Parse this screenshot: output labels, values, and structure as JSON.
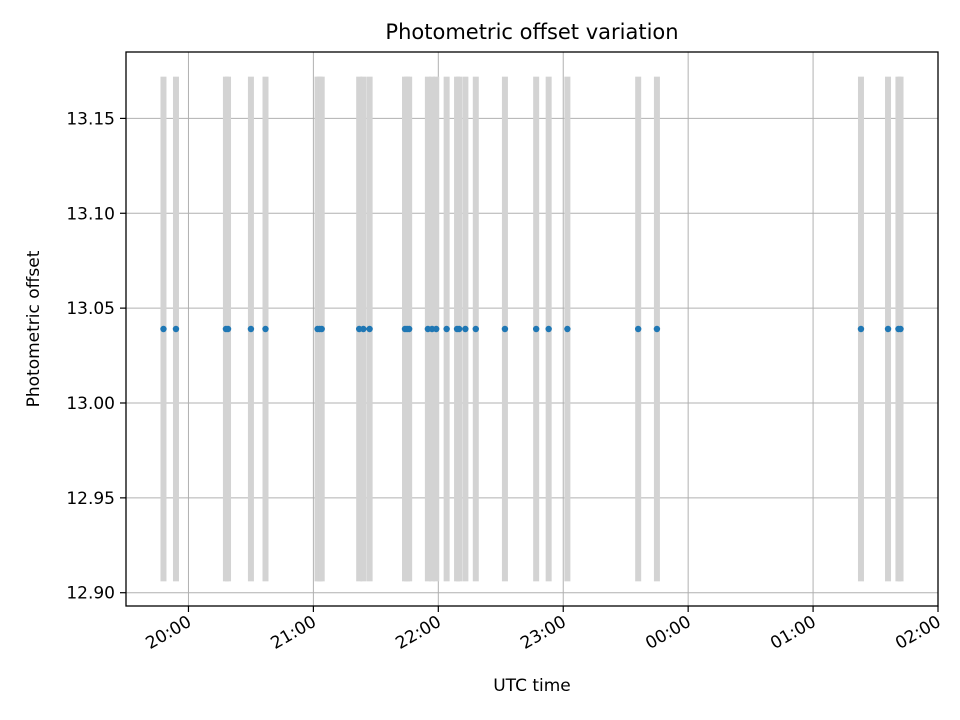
{
  "chart_data": {
    "type": "scatter",
    "title": "Photometric offset variation",
    "xlabel": "UTC time",
    "ylabel": "Photometric offset",
    "ylim": [
      12.893,
      13.185
    ],
    "xlim": [
      "19:30",
      "02:00"
    ],
    "grid": true,
    "x_ticks": [
      "20:00",
      "21:00",
      "22:00",
      "23:00",
      "00:00",
      "01:00",
      "02:00"
    ],
    "y_ticks": [
      "12.90",
      "12.95",
      "13.00",
      "13.05",
      "13.10",
      "13.15"
    ],
    "band_range": [
      12.906,
      13.172
    ],
    "band_color": "#d3d3d3",
    "point_color": "#1f77b4",
    "grid_color": "#b0b0b0",
    "series": [
      {
        "type": "scatter",
        "x": [
          "19:48",
          "19:54",
          "20:18",
          "20:19",
          "20:30",
          "20:37",
          "21:02",
          "21:03",
          "21:04",
          "21:22",
          "21:24",
          "21:27",
          "21:44",
          "21:45",
          "21:46",
          "21:55",
          "21:57",
          "21:59",
          "22:04",
          "22:09",
          "22:10",
          "22:13",
          "22:18",
          "22:32",
          "22:47",
          "22:53",
          "23:02",
          "23:36",
          "23:45",
          "01:23",
          "01:36",
          "01:41",
          "01:42"
        ],
        "y": [
          13.039,
          13.039,
          13.039,
          13.039,
          13.039,
          13.039,
          13.039,
          13.039,
          13.039,
          13.039,
          13.039,
          13.039,
          13.039,
          13.039,
          13.039,
          13.039,
          13.039,
          13.039,
          13.039,
          13.039,
          13.039,
          13.039,
          13.039,
          13.039,
          13.039,
          13.039,
          13.039,
          13.039,
          13.039,
          13.039,
          13.039,
          13.039,
          13.039
        ]
      },
      {
        "type": "vertical-bands",
        "x": [
          "19:48",
          "19:54",
          "20:18",
          "20:19",
          "20:30",
          "20:37",
          "21:02",
          "21:03",
          "21:04",
          "21:22",
          "21:24",
          "21:27",
          "21:44",
          "21:45",
          "21:46",
          "21:55",
          "21:57",
          "21:59",
          "22:04",
          "22:09",
          "22:10",
          "22:13",
          "22:18",
          "22:32",
          "22:47",
          "22:53",
          "23:02",
          "23:36",
          "23:45",
          "01:23",
          "01:36",
          "01:41",
          "01:42"
        ]
      }
    ]
  }
}
